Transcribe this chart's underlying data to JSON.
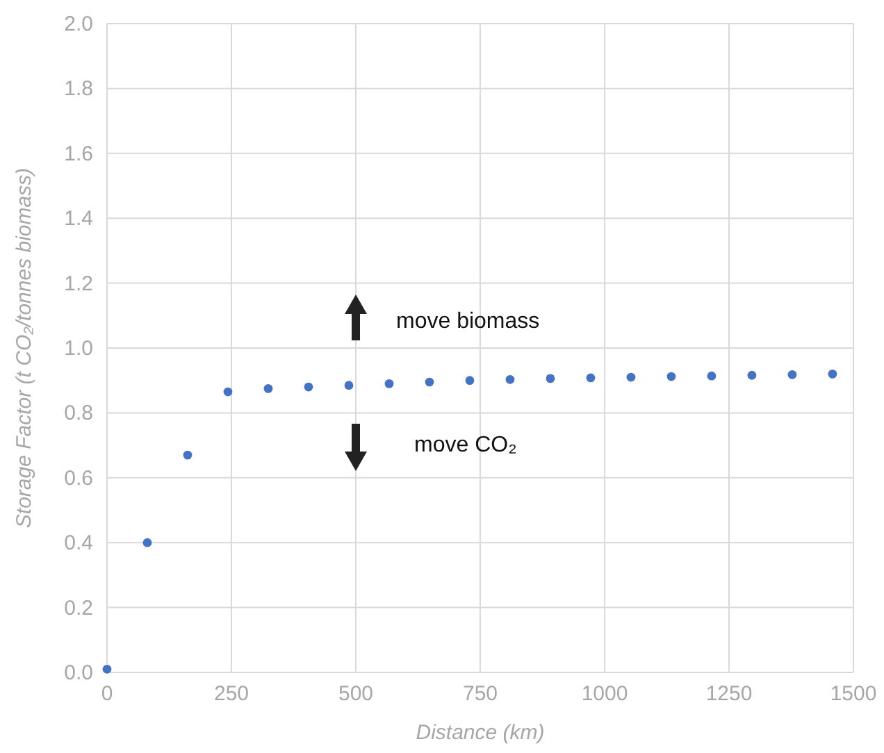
{
  "chart_data": {
    "type": "scatter",
    "xlabel": "Distance (km)",
    "ylabel": "Storage Factor (t CO₂/tonnes biomass)",
    "x": [
      0,
      81,
      162,
      243,
      324,
      405,
      486,
      567,
      648,
      729,
      810,
      891,
      972,
      1053,
      1134,
      1215,
      1296,
      1377,
      1458
    ],
    "values": [
      0.01,
      0.4,
      0.67,
      0.865,
      0.875,
      0.88,
      0.885,
      0.89,
      0.895,
      0.9,
      0.903,
      0.906,
      0.908,
      0.91,
      0.912,
      0.914,
      0.916,
      0.918,
      0.92
    ],
    "color": "#4472c4",
    "marker": "circle",
    "xlim": [
      0,
      1500
    ],
    "xticks": [
      0,
      250,
      500,
      750,
      1000,
      1250,
      1500
    ],
    "ylim": [
      0,
      2
    ],
    "yticks": [
      {
        "value": 0,
        "label": "0.0"
      },
      {
        "value": 0.2,
        "label": "0.2"
      },
      {
        "value": 0.4,
        "label": "0.4"
      },
      {
        "value": 0.6,
        "label": "0.6"
      },
      {
        "value": 0.8,
        "label": "0.8"
      },
      {
        "value": 1,
        "label": "1.0"
      },
      {
        "value": 1.2,
        "label": "1.2"
      },
      {
        "value": 1.4,
        "label": "1.4"
      },
      {
        "value": 1.6,
        "label": "1.6"
      },
      {
        "value": 1.8,
        "label": "1.8"
      },
      {
        "value": 2,
        "label": "2.0"
      }
    ],
    "grid": true,
    "annotations": [
      "move biomass",
      "move CO₂"
    ]
  }
}
